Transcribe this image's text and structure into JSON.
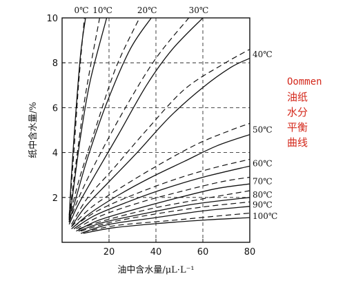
{
  "caption": {
    "line1": "Oommen",
    "line2": "油纸",
    "line3": "水分",
    "line4": "平衡",
    "line5": "曲线"
  },
  "colors": {
    "caption": "#d4291c",
    "ink": "#111111"
  },
  "chart_data": {
    "type": "line",
    "xlabel": "油中含水量/μL·L⁻¹",
    "ylabel": "纸中含水量/%",
    "xlim": [
      0,
      80
    ],
    "ylim": [
      0,
      10
    ],
    "xticks": [
      20,
      40,
      60,
      80
    ],
    "yticks": [
      2,
      4,
      6,
      8,
      10
    ],
    "grid": "dashed",
    "series": [
      {
        "name": "0℃",
        "label_position": "top",
        "solid": [
          [
            3,
            1.0
          ],
          [
            4,
            3.0
          ],
          [
            6,
            6.0
          ],
          [
            8,
            8.5
          ],
          [
            10,
            10
          ]
        ],
        "dashed": [
          [
            3,
            1.2
          ],
          [
            5,
            4.0
          ],
          [
            7,
            7.0
          ],
          [
            9.5,
            10
          ]
        ]
      },
      {
        "name": "10℃",
        "label_position": "top",
        "solid": [
          [
            3,
            0.9
          ],
          [
            5,
            2.5
          ],
          [
            8,
            4.8
          ],
          [
            12,
            7.2
          ],
          [
            19,
            10
          ]
        ],
        "dashed": [
          [
            3,
            1.1
          ],
          [
            6,
            3.6
          ],
          [
            10,
            6.6
          ],
          [
            16,
            10
          ]
        ]
      },
      {
        "name": "20℃",
        "label_position": "top",
        "solid": [
          [
            3,
            0.9
          ],
          [
            6,
            2.0
          ],
          [
            11,
            3.8
          ],
          [
            19,
            6.2
          ],
          [
            29,
            8.6
          ],
          [
            38,
            10
          ]
        ],
        "dashed": [
          [
            3,
            1.0
          ],
          [
            7,
            2.7
          ],
          [
            14,
            5.0
          ],
          [
            23,
            7.8
          ],
          [
            33,
            10
          ]
        ]
      },
      {
        "name": "30℃",
        "label_position": "top",
        "solid": [
          [
            3,
            0.8
          ],
          [
            7,
            1.7
          ],
          [
            14,
            3.0
          ],
          [
            24,
            4.8
          ],
          [
            36,
            7.0
          ],
          [
            47,
            8.6
          ],
          [
            60,
            10
          ]
        ],
        "dashed": [
          [
            3,
            0.9
          ],
          [
            8,
            2.2
          ],
          [
            16,
            3.9
          ],
          [
            27,
            6.0
          ],
          [
            40,
            8.2
          ],
          [
            54,
            10
          ]
        ]
      },
      {
        "name": "40℃",
        "label_position": "right",
        "solid": [
          [
            4,
            0.7
          ],
          [
            10,
            1.6
          ],
          [
            20,
            2.7
          ],
          [
            32,
            4.0
          ],
          [
            46,
            5.6
          ],
          [
            60,
            6.9
          ],
          [
            72,
            7.8
          ],
          [
            80,
            8.2
          ]
        ],
        "dashed": [
          [
            4,
            0.8
          ],
          [
            11,
            2.0
          ],
          [
            22,
            3.3
          ],
          [
            36,
            5.0
          ],
          [
            52,
            6.8
          ],
          [
            68,
            7.9
          ],
          [
            80,
            8.6
          ]
        ]
      },
      {
        "name": "50℃",
        "label_position": "right",
        "solid": [
          [
            4,
            0.6
          ],
          [
            12,
            1.3
          ],
          [
            24,
            2.1
          ],
          [
            38,
            2.9
          ],
          [
            52,
            3.6
          ],
          [
            66,
            4.3
          ],
          [
            80,
            4.8
          ]
        ],
        "dashed": [
          [
            4,
            0.7
          ],
          [
            13,
            1.6
          ],
          [
            26,
            2.5
          ],
          [
            42,
            3.5
          ],
          [
            58,
            4.4
          ],
          [
            72,
            5.0
          ],
          [
            80,
            5.3
          ]
        ]
      },
      {
        "name": "60℃",
        "label_position": "right",
        "solid": [
          [
            5,
            0.6
          ],
          [
            14,
            1.2
          ],
          [
            28,
            1.8
          ],
          [
            44,
            2.4
          ],
          [
            60,
            2.9
          ],
          [
            80,
            3.4
          ]
        ],
        "dashed": [
          [
            5,
            0.7
          ],
          [
            15,
            1.4
          ],
          [
            30,
            2.1
          ],
          [
            48,
            2.8
          ],
          [
            64,
            3.3
          ],
          [
            80,
            3.7
          ]
        ]
      },
      {
        "name": "70℃",
        "label_position": "right",
        "solid": [
          [
            6,
            0.5
          ],
          [
            16,
            1.0
          ],
          [
            32,
            1.5
          ],
          [
            50,
            2.0
          ],
          [
            66,
            2.4
          ],
          [
            80,
            2.6
          ]
        ],
        "dashed": [
          [
            6,
            0.6
          ],
          [
            17,
            1.2
          ],
          [
            34,
            1.8
          ],
          [
            52,
            2.3
          ],
          [
            68,
            2.7
          ],
          [
            80,
            2.9
          ]
        ]
      },
      {
        "name": "80℃",
        "label_position": "right",
        "solid": [
          [
            7,
            0.5
          ],
          [
            18,
            0.9
          ],
          [
            36,
            1.3
          ],
          [
            56,
            1.7
          ],
          [
            80,
            2.0
          ]
        ],
        "dashed": [
          [
            7,
            0.6
          ],
          [
            19,
            1.0
          ],
          [
            38,
            1.5
          ],
          [
            58,
            1.9
          ],
          [
            80,
            2.3
          ]
        ]
      },
      {
        "name": "90℃",
        "label_position": "right",
        "solid": [
          [
            8,
            0.4
          ],
          [
            20,
            0.8
          ],
          [
            40,
            1.1
          ],
          [
            60,
            1.4
          ],
          [
            80,
            1.6
          ]
        ],
        "dashed": [
          [
            8,
            0.5
          ],
          [
            21,
            0.9
          ],
          [
            42,
            1.3
          ],
          [
            62,
            1.6
          ],
          [
            80,
            1.8
          ]
        ]
      },
      {
        "name": "100℃",
        "label_position": "right",
        "solid": [
          [
            9,
            0.4
          ],
          [
            22,
            0.65
          ],
          [
            42,
            0.85
          ],
          [
            62,
            1.0
          ],
          [
            80,
            1.1
          ]
        ],
        "dashed": [
          [
            9,
            0.45
          ],
          [
            23,
            0.75
          ],
          [
            44,
            0.95
          ],
          [
            64,
            1.15
          ],
          [
            80,
            1.3
          ]
        ]
      }
    ]
  }
}
